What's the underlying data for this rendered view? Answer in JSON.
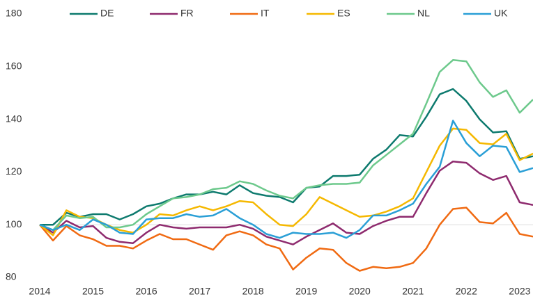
{
  "chart_data": {
    "type": "line",
    "x": [
      2014,
      2014.25,
      2014.5,
      2014.75,
      2015,
      2015.25,
      2015.5,
      2015.75,
      2016,
      2016.25,
      2016.5,
      2016.75,
      2017,
      2017.25,
      2017.5,
      2017.75,
      2018,
      2018.25,
      2018.5,
      2018.75,
      2019,
      2019.25,
      2019.5,
      2019.75,
      2020,
      2020.25,
      2020.5,
      2020.75,
      2021,
      2021.25,
      2021.5,
      2021.75,
      2022,
      2022.25,
      2022.5,
      2022.75,
      2023,
      2023.25
    ],
    "series": [
      {
        "name": "DE",
        "color": "#0d7a6e",
        "values": [
          100,
          100,
          104.5,
          103,
          104,
          104,
          102,
          104,
          107,
          108,
          110,
          111.5,
          111.5,
          112.5,
          111.5,
          115,
          112,
          111,
          110.5,
          108.5,
          114,
          114.5,
          118.5,
          118.5,
          119,
          125,
          128.5,
          134,
          133.5,
          141,
          149.5,
          151.5,
          147,
          140,
          135,
          135.5,
          125,
          126
        ]
      },
      {
        "name": "FR",
        "color": "#8e2a6e",
        "values": [
          100,
          97,
          101.5,
          99,
          99.5,
          95,
          93.5,
          93,
          97,
          100,
          99,
          98.5,
          99,
          99,
          99,
          100,
          98.5,
          95.5,
          94,
          92.5,
          95.5,
          98,
          100.5,
          97,
          96.5,
          99.5,
          101.5,
          103,
          103,
          112,
          120.5,
          124,
          123.5,
          119.5,
          117,
          118.5,
          108.5,
          107.5
        ]
      },
      {
        "name": "IT",
        "color": "#f06a12",
        "values": [
          100,
          94,
          99.5,
          96,
          94.5,
          92,
          92,
          91,
          94,
          96.5,
          94.5,
          94.5,
          92.5,
          90.5,
          96,
          97.5,
          96,
          92.5,
          91,
          83,
          87.5,
          91,
          90.5,
          85.5,
          82.5,
          84,
          83.5,
          84,
          85.5,
          91,
          100,
          106,
          106.5,
          101,
          100.5,
          104.5,
          96.5,
          95.5
        ]
      },
      {
        "name": "ES",
        "color": "#f5b800",
        "values": [
          100,
          96,
          105.5,
          103,
          102.5,
          100,
          98,
          97,
          100,
          104,
          103.5,
          105.5,
          107,
          105.5,
          107,
          109,
          108.5,
          104,
          100,
          99.5,
          104,
          110.5,
          108,
          105.5,
          103,
          103.5,
          105,
          107,
          110,
          120,
          130,
          136.5,
          136,
          131,
          130.5,
          134.5,
          124.5,
          127
        ]
      },
      {
        "name": "NL",
        "color": "#6dc98c",
        "values": [
          100,
          98,
          103.5,
          102.5,
          103,
          99,
          99,
          100,
          104,
          107,
          110,
          110.5,
          111.5,
          113.5,
          114,
          116.5,
          115.5,
          113,
          111,
          110,
          114,
          115,
          115.5,
          115.5,
          116,
          122.5,
          126.5,
          130.5,
          134.5,
          146,
          158,
          162.5,
          162,
          154,
          148.5,
          151,
          142.5,
          147.5
        ]
      },
      {
        "name": "UK",
        "color": "#2a9fd6",
        "values": [
          100,
          98,
          100,
          98,
          102,
          100,
          97,
          96.5,
          102,
          102.5,
          102.5,
          104,
          103,
          103.5,
          106,
          102.5,
          100,
          96.5,
          95,
          97,
          96.5,
          96.5,
          97,
          95,
          98,
          103.5,
          103.5,
          105.5,
          108,
          115.5,
          122,
          139.5,
          131,
          126,
          130,
          129.5,
          120,
          121.5
        ]
      }
    ],
    "xlim": [
      2014,
      2023.25
    ],
    "xticks": [
      2014,
      2015,
      2016,
      2017,
      2018,
      2019,
      2020,
      2021,
      2022,
      2023
    ],
    "ylim": [
      80,
      180
    ],
    "yticks": [
      80,
      100,
      120,
      140,
      160,
      180
    ],
    "reference_line": 100,
    "legend": "top"
  }
}
